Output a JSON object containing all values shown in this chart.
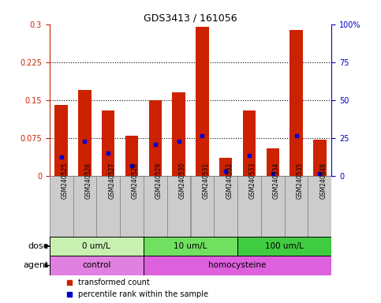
{
  "title": "GDS3413 / 161056",
  "samples": [
    "GSM240525",
    "GSM240526",
    "GSM240527",
    "GSM240528",
    "GSM240529",
    "GSM240530",
    "GSM240531",
    "GSM240532",
    "GSM240533",
    "GSM240534",
    "GSM240535",
    "GSM240848"
  ],
  "red_values": [
    0.14,
    0.17,
    0.13,
    0.08,
    0.15,
    0.165,
    0.295,
    0.035,
    0.13,
    0.055,
    0.288,
    0.072
  ],
  "blue_values": [
    0.038,
    0.068,
    0.045,
    0.02,
    0.062,
    0.068,
    0.08,
    0.01,
    0.04,
    0.005,
    0.08,
    0.005
  ],
  "ylim_left": [
    0,
    0.3
  ],
  "ylim_right": [
    0,
    100
  ],
  "yticks_left": [
    0,
    0.075,
    0.15,
    0.225,
    0.3
  ],
  "yticks_right": [
    0,
    25,
    50,
    75,
    100
  ],
  "ytick_labels_left": [
    "0",
    "0.075",
    "0.15",
    "0.225",
    "0.3"
  ],
  "ytick_labels_right": [
    "0",
    "25",
    "50",
    "75",
    "100%"
  ],
  "dose_groups": [
    {
      "label": "0 um/L",
      "start": 0,
      "end": 4,
      "color": "#c8f0b0"
    },
    {
      "label": "10 um/L",
      "start": 4,
      "end": 8,
      "color": "#70e060"
    },
    {
      "label": "100 um/L",
      "start": 8,
      "end": 12,
      "color": "#40cc40"
    }
  ],
  "agent_groups": [
    {
      "label": "control",
      "start": 0,
      "end": 4,
      "color": "#e080e0"
    },
    {
      "label": "homocysteine",
      "start": 4,
      "end": 12,
      "color": "#dd60dd"
    }
  ],
  "bar_color": "#cc2200",
  "dot_color": "#0000cc",
  "axis_color_left": "#cc2200",
  "axis_color_right": "#0000cc",
  "bar_width": 0.55,
  "legend_items": [
    {
      "color": "#cc2200",
      "label": "transformed count"
    },
    {
      "color": "#0000cc",
      "label": "percentile rank within the sample"
    }
  ],
  "dose_label": "dose",
  "agent_label": "agent",
  "sample_bg_color": "#cccccc",
  "sample_edge_color": "#888888"
}
